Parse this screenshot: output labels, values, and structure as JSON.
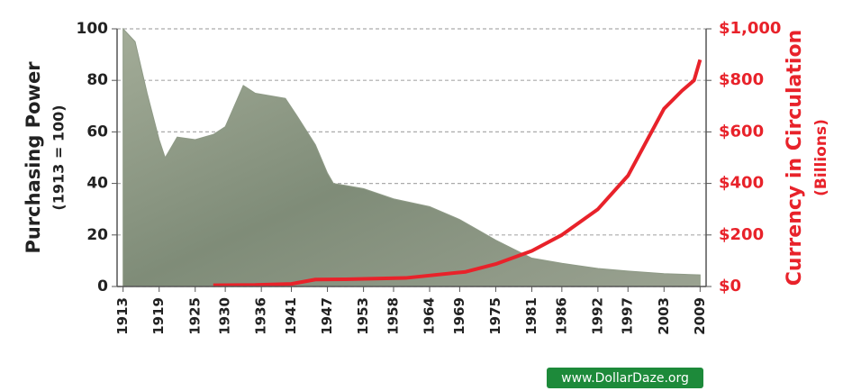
{
  "chart_data": {
    "type": "area-line",
    "y_label": "Purchasing Power",
    "y_sublabel": "(1913 = 100)",
    "y2_label": "Currency in Circulation",
    "y2_sublabel": "(Billions)",
    "watermark": "www.DollarDaze.org",
    "xlim": [
      1912,
      2010
    ],
    "xticks": [
      1913,
      1919,
      1925,
      1930,
      1936,
      1941,
      1947,
      1953,
      1958,
      1964,
      1969,
      1975,
      1981,
      1986,
      1992,
      1997,
      2003,
      2009
    ],
    "ylim": [
      0,
      100
    ],
    "yticks": [
      0,
      20,
      40,
      60,
      80,
      100
    ],
    "y2lim": [
      0,
      1000
    ],
    "y2ticks": [
      {
        "value": 0,
        "label": "$0"
      },
      {
        "value": 200,
        "label": "$200"
      },
      {
        "value": 400,
        "label": "$400"
      },
      {
        "value": 600,
        "label": "$600"
      },
      {
        "value": 800,
        "label": "$800"
      },
      {
        "value": 1000,
        "label": "$1,000"
      }
    ],
    "grid": true,
    "series": [
      {
        "name": "Purchasing Power",
        "kind": "area",
        "color": "#8e9a86",
        "x": [
          1913,
          1915,
          1917,
          1919,
          1920,
          1922,
          1925,
          1928,
          1930,
          1933,
          1935,
          1940,
          1942,
          1945,
          1947,
          1948,
          1953,
          1958,
          1964,
          1969,
          1975,
          1981,
          1986,
          1992,
          1997,
          2003,
          2009
        ],
        "values": [
          100,
          95,
          75,
          57,
          50,
          58,
          57,
          59,
          62,
          78,
          75,
          73,
          66,
          55,
          44,
          40,
          38,
          34,
          31,
          26,
          18,
          11,
          9,
          7,
          6,
          5,
          4.5
        ]
      },
      {
        "name": "Currency in Circulation",
        "kind": "line",
        "axis": "y2",
        "color": "#e8222a",
        "x": [
          1928,
          1935,
          1941,
          1945,
          1950,
          1960,
          1970,
          1975,
          1981,
          1986,
          1992,
          1997,
          2000,
          2003,
          2006,
          2008,
          2009
        ],
        "values": [
          5,
          6,
          10,
          27,
          28,
          33,
          57,
          87,
          138,
          200,
          300,
          430,
          560,
          690,
          760,
          800,
          880
        ]
      }
    ]
  }
}
